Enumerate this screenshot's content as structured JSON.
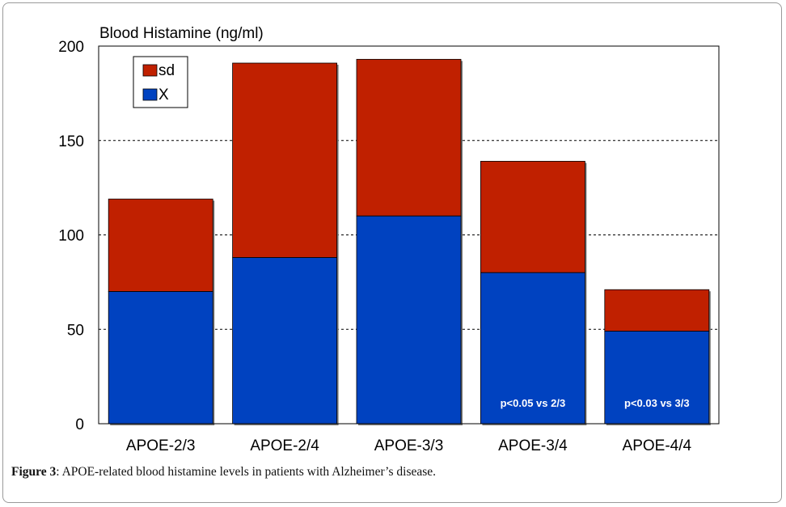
{
  "chart_data": {
    "type": "bar",
    "stacked": true,
    "title": "Blood Histamine (ng/ml)",
    "xlabel": "",
    "ylabel": "",
    "categories": [
      "APOE-2/3",
      "APOE-2/4",
      "APOE-3/3",
      "APOE-3/4",
      "APOE-4/4"
    ],
    "series": [
      {
        "name": "X",
        "values": [
          70,
          88,
          110,
          80,
          49
        ],
        "color": "#0042c0"
      },
      {
        "name": "sd",
        "values": [
          49,
          103,
          83,
          59,
          22
        ],
        "color": "#c02000"
      }
    ],
    "totals": [
      119,
      191,
      193,
      139,
      71
    ],
    "ylim": [
      0,
      200
    ],
    "yticks": [
      0,
      50,
      100,
      150,
      200
    ],
    "grid": "dashed horizontal at 50, 100, 150",
    "legend": "top-left",
    "bar_annotations": [
      "",
      "",
      "",
      "p<0.05 vs 2/3",
      "p<0.03 vs 3/3"
    ]
  },
  "caption": {
    "label": "Figure 3",
    "text": ": APOE-related blood histamine levels in patients with Alzheimer’s disease."
  }
}
